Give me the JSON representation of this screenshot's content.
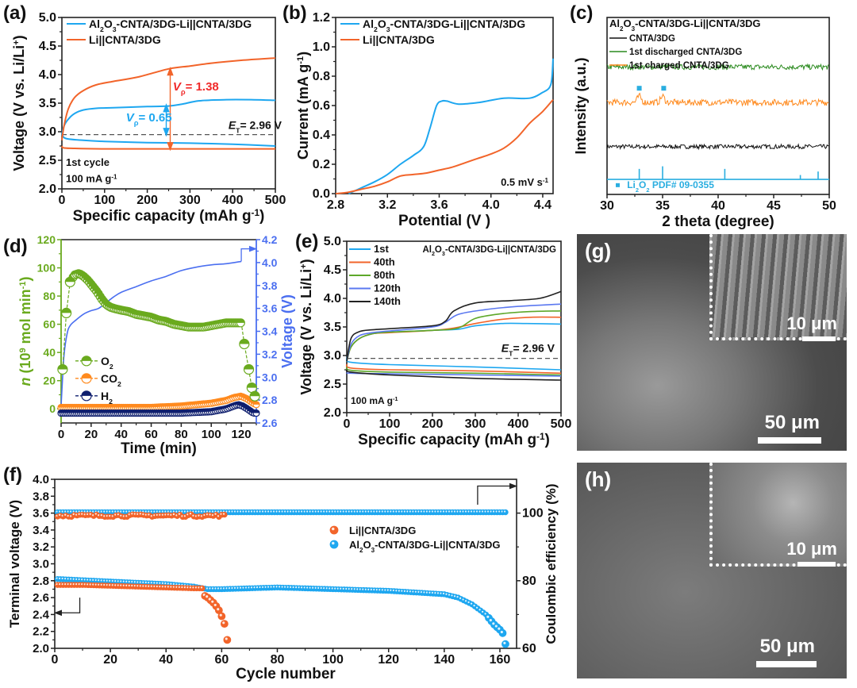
{
  "chart_data": [
    {
      "panel": "(a)",
      "type": "line",
      "xlabel": "Specific capacity (mAh g-1)",
      "ylabel": "Voltage (V vs. Li/Li+)",
      "xlim": [
        0,
        500
      ],
      "ylim": [
        2.0,
        5.0
      ],
      "xticks": [
        0,
        100,
        200,
        300,
        400,
        500
      ],
      "yticks": [
        2.0,
        2.5,
        3.0,
        3.5,
        4.0,
        4.5,
        5.0
      ],
      "legend": [
        "Al2O3-CNTA/3DG-Li||CNTA/3DG",
        "Li||CNTA/3DG"
      ],
      "legend_position": "top-left",
      "annotations": [
        "1st cycle",
        "100 mA g-1",
        "ET= 2.96 V",
        "Vp= 0.65",
        "Vp= 1.38"
      ],
      "reference_line": 2.95,
      "series": [
        {
          "name": "Al2O3-CNTA/3DG-Li||CNTA/3DG",
          "color": "#1ea7f0",
          "branch": "charge",
          "x": [
            0,
            5,
            15,
            30,
            50,
            80,
            120,
            200,
            250,
            280,
            320,
            380,
            450,
            500
          ],
          "y": [
            2.95,
            3.1,
            3.22,
            3.32,
            3.38,
            3.41,
            3.42,
            3.44,
            3.45,
            3.48,
            3.54,
            3.56,
            3.56,
            3.55
          ]
        },
        {
          "name": "Al2O3-CNTA/3DG-Li||CNTA/3DG",
          "color": "#1ea7f0",
          "branch": "discharge",
          "x": [
            0,
            10,
            50,
            100,
            200,
            300,
            400,
            500
          ],
          "y": [
            2.95,
            2.88,
            2.85,
            2.83,
            2.81,
            2.8,
            2.78,
            2.75
          ]
        },
        {
          "name": "Li||CNTA/3DG",
          "color": "#f2642a",
          "branch": "charge",
          "x": [
            0,
            5,
            15,
            30,
            50,
            80,
            120,
            180,
            250,
            300,
            350,
            420,
            500
          ],
          "y": [
            2.85,
            3.1,
            3.4,
            3.6,
            3.72,
            3.82,
            3.88,
            3.96,
            4.1,
            4.15,
            4.2,
            4.25,
            4.29
          ]
        },
        {
          "name": "Li||CNTA/3DG",
          "color": "#f2642a",
          "branch": "discharge",
          "x": [
            0,
            3,
            20,
            100,
            300,
            500
          ],
          "y": [
            2.75,
            2.72,
            2.71,
            2.7,
            2.7,
            2.7
          ]
        }
      ]
    },
    {
      "panel": "(b)",
      "type": "line",
      "xlabel": "Potential (V )",
      "ylabel": "Current (mA g-1)",
      "xlim": [
        2.8,
        4.48
      ],
      "ylim": [
        0.0,
        1.2
      ],
      "xticks": [
        2.8,
        3.2,
        3.6,
        4.0,
        4.4
      ],
      "yticks": [
        0.0,
        0.2,
        0.4,
        0.6,
        0.8,
        1.0,
        1.2
      ],
      "legend": [
        "Al2O3-CNTA/3DG-Li||CNTA/3DG",
        "Li||CNTA/3DG"
      ],
      "legend_position": "top-left",
      "annotations": [
        "0.5 mV s-1"
      ],
      "series": [
        {
          "name": "Al2O3-CNTA/3DG-Li||CNTA/3DG",
          "color": "#1ea7f0",
          "x": [
            2.9,
            3.0,
            3.1,
            3.2,
            3.3,
            3.4,
            3.48,
            3.53,
            3.58,
            3.62,
            3.66,
            3.75,
            3.9,
            4.1,
            4.3,
            4.4,
            4.45,
            4.47,
            4.48
          ],
          "y": [
            0.0,
            0.04,
            0.08,
            0.13,
            0.2,
            0.26,
            0.32,
            0.45,
            0.6,
            0.63,
            0.63,
            0.61,
            0.62,
            0.65,
            0.65,
            0.69,
            0.72,
            0.78,
            0.92
          ]
        },
        {
          "name": "Li||CNTA/3DG",
          "color": "#f2642a",
          "x": [
            2.8,
            2.9,
            3.0,
            3.1,
            3.2,
            3.3,
            3.4,
            3.5,
            3.6,
            3.7,
            3.8,
            3.9,
            4.0,
            4.1,
            4.2,
            4.3,
            4.4,
            4.48
          ],
          "y": [
            0.0,
            0.01,
            0.03,
            0.05,
            0.08,
            0.12,
            0.13,
            0.14,
            0.16,
            0.18,
            0.21,
            0.24,
            0.27,
            0.31,
            0.38,
            0.48,
            0.56,
            0.64
          ]
        }
      ]
    },
    {
      "panel": "(c)",
      "type": "line",
      "title": "Al2O3-CNTA/3DG-Li||CNTA/3DG",
      "xlabel": "2 theta (degree)",
      "ylabel": "Intensity (a.u.)",
      "xlim": [
        30,
        50
      ],
      "xticks": [
        30,
        35,
        40,
        45,
        50
      ],
      "legend": [
        "CNTA/3DG",
        "1st discharged CNTA/3DG",
        "1st charged CNTA/3DG"
      ],
      "legend_position": "top-left",
      "series": [
        {
          "name": "CNTA/3DG",
          "color": "#111111",
          "offset": 0.27,
          "noise": 0.012
        },
        {
          "name": "1st discharged CNTA/3DG",
          "color": "#2a8a1e",
          "offset": 0.72,
          "noise": 0.015
        },
        {
          "name": "1st charged CNTA/3DG",
          "color": "#ff8a1e",
          "offset": 0.52,
          "noise": 0.018,
          "peaks": [
            32.9,
            35.0
          ]
        }
      ],
      "reference": {
        "name": "Li2O2 PDF# 09-0355",
        "color": "#2aaee0",
        "positions": [
          32.9,
          35.0,
          40.6,
          47.4,
          49.0
        ],
        "heights": [
          0.6,
          0.75,
          0.6,
          0.25,
          0.45
        ]
      },
      "peak_markers": [
        32.9,
        35.1
      ]
    },
    {
      "panel": "(d)",
      "type": "scatter",
      "xlabel": "Time (min)",
      "ylabel": "n (10^9 mol min-1)",
      "ylabel_right": "Voltage (V)",
      "xlim": [
        0,
        130
      ],
      "ylim": [
        -10,
        120
      ],
      "ylim_right": [
        2.6,
        4.2
      ],
      "xticks": [
        0,
        20,
        40,
        60,
        80,
        100,
        120
      ],
      "yticks": [
        0,
        20,
        40,
        60,
        80,
        100,
        120
      ],
      "yticks_right": [
        2.6,
        2.8,
        3.0,
        3.2,
        3.4,
        3.6,
        3.8,
        4.0,
        4.2
      ],
      "legend": [
        "O2",
        "CO2",
        "H2"
      ],
      "legend_position": "bottom-left",
      "series": [
        {
          "name": "O2",
          "color": "#6aaa1e",
          "x": [
            1,
            3.5,
            6,
            9,
            12,
            15,
            18,
            21,
            24,
            27,
            30,
            33,
            36,
            40,
            45,
            50,
            55,
            60,
            65,
            70,
            75,
            80,
            85,
            90,
            95,
            100,
            105,
            110,
            115,
            120,
            122,
            125,
            127,
            129
          ],
          "y": [
            28,
            68,
            90,
            95,
            96,
            94,
            91,
            87,
            83,
            78,
            74,
            72,
            71,
            70,
            69,
            67,
            66,
            65,
            63,
            62,
            60,
            59,
            58,
            58,
            58,
            59,
            60,
            61,
            61,
            61,
            46,
            28,
            15,
            9
          ]
        },
        {
          "name": "CO2",
          "color": "#ff8a1e",
          "x": [
            0,
            20,
            40,
            60,
            80,
            100,
            110,
            115,
            120,
            124,
            128,
            130
          ],
          "y": [
            1,
            1,
            1,
            1,
            2,
            4,
            6,
            8,
            9,
            7,
            4,
            3
          ]
        },
        {
          "name": "H2",
          "color": "#0f1f6e",
          "x": [
            0,
            40,
            80,
            100,
            110,
            115,
            118,
            121,
            124,
            128
          ],
          "y": [
            -3,
            -3,
            -3,
            -2,
            0,
            2,
            3,
            2,
            0,
            -3
          ]
        },
        {
          "name": "Voltage",
          "axis": "right",
          "color": "#4b6ff0",
          "x": [
            0,
            1,
            2,
            4,
            6,
            10,
            15,
            20,
            25,
            30,
            35,
            40,
            50,
            60,
            70,
            80,
            90,
            100,
            110,
            120
          ],
          "y": [
            2.75,
            3.0,
            3.2,
            3.38,
            3.45,
            3.5,
            3.55,
            3.58,
            3.6,
            3.65,
            3.7,
            3.74,
            3.79,
            3.84,
            3.88,
            3.93,
            3.96,
            3.98,
            3.99,
            4.01
          ]
        }
      ]
    },
    {
      "panel": "(e)",
      "type": "line",
      "xlabel": "Specific capacity (mAh g-1)",
      "ylabel": "Voltage (V vs. Li/Li+)",
      "xlim": [
        0,
        500
      ],
      "ylim": [
        2.0,
        5.0
      ],
      "xticks": [
        0,
        100,
        200,
        300,
        400,
        500
      ],
      "yticks": [
        2.0,
        2.5,
        3.0,
        3.5,
        4.0,
        4.5,
        5.0
      ],
      "title": "Al2O3-CNTA/3DG-Li||CNTA/3DG",
      "legend": [
        "1st",
        "40th",
        "80th",
        "120th",
        "140th"
      ],
      "legend_position": "top-left",
      "annotations": [
        "100 mA g-1",
        "ET= 2.96 V"
      ],
      "reference_line": 2.95,
      "series": [
        {
          "name": "1st",
          "color": "#1ea7f0",
          "charge": {
            "x": [
              0,
              10,
              30,
              60,
              100,
              200,
              260,
              300,
              360,
              420,
              500
            ],
            "y": [
              2.95,
              3.15,
              3.3,
              3.38,
              3.41,
              3.44,
              3.46,
              3.52,
              3.56,
              3.56,
              3.55
            ]
          },
          "discharge": {
            "x": [
              0,
              10,
              100,
              300,
              500
            ],
            "y": [
              2.95,
              2.88,
              2.84,
              2.8,
              2.75
            ]
          }
        },
        {
          "name": "40th",
          "color": "#f2642a",
          "charge": {
            "x": [
              0,
              10,
              30,
              60,
              100,
              200,
              250,
              300,
              360,
              430,
              500
            ],
            "y": [
              2.9,
              3.15,
              3.3,
              3.38,
              3.4,
              3.44,
              3.48,
              3.56,
              3.63,
              3.67,
              3.67
            ]
          },
          "discharge": {
            "x": [
              0,
              10,
              100,
              300,
              500
            ],
            "y": [
              2.85,
              2.78,
              2.75,
              2.73,
              2.69
            ]
          }
        },
        {
          "name": "80th",
          "color": "#5ea82a",
          "charge": {
            "x": [
              0,
              10,
              30,
              60,
              100,
              200,
              260,
              300,
              360,
              430,
              500
            ],
            "y": [
              2.9,
              3.15,
              3.3,
              3.38,
              3.41,
              3.44,
              3.48,
              3.65,
              3.73,
              3.77,
              3.78
            ]
          },
          "discharge": {
            "x": [
              0,
              10,
              100,
              300,
              500
            ],
            "y": [
              2.8,
              2.74,
              2.71,
              2.69,
              2.66
            ]
          }
        },
        {
          "name": "120th",
          "color": "#5b78f0",
          "charge": {
            "x": [
              0,
              10,
              30,
              60,
              100,
              200,
              230,
              260,
              320,
              400,
              500
            ],
            "y": [
              2.9,
              3.2,
              3.35,
              3.4,
              3.43,
              3.5,
              3.58,
              3.72,
              3.8,
              3.86,
              3.9
            ]
          },
          "discharge": {
            "x": [
              0,
              10,
              100,
              300,
              500
            ],
            "y": [
              2.7,
              2.69,
              2.68,
              2.66,
              2.64
            ]
          }
        },
        {
          "name": "140th",
          "color": "#222222",
          "charge": {
            "x": [
              0,
              10,
              30,
              60,
              100,
              200,
              230,
              250,
              300,
              380,
              450,
              500
            ],
            "y": [
              2.9,
              3.3,
              3.42,
              3.45,
              3.47,
              3.52,
              3.6,
              3.78,
              3.92,
              3.96,
              4.0,
              4.12
            ]
          },
          "discharge": {
            "x": [
              0,
              10,
              100,
              300,
              500
            ],
            "y": [
              2.75,
              2.71,
              2.66,
              2.6,
              2.57
            ]
          }
        }
      ]
    },
    {
      "panel": "(f)",
      "type": "scatter",
      "xlabel": "Cycle number",
      "ylabel": "Terminal voltage (V)",
      "ylabel_right": "Coulombic efficiency (%)",
      "xlim": [
        0,
        166
      ],
      "ylim": [
        2.0,
        4.0
      ],
      "ylim_right": [
        60,
        110
      ],
      "xticks": [
        0,
        20,
        40,
        60,
        80,
        100,
        120,
        140,
        160
      ],
      "yticks": [
        2.0,
        2.2,
        2.4,
        2.6,
        2.8,
        3.0,
        3.2,
        3.4,
        3.6,
        3.8,
        4.0
      ],
      "yticks_right": [
        60,
        80,
        100
      ],
      "legend": [
        "Li||CNTA/3DG",
        "Al2O3-CNTA/3DG-Li||CNTA/3DG"
      ],
      "legend_position": "center-right",
      "series": [
        {
          "name": "Li||CNTA/3DG",
          "color": "#f2642a",
          "kind": "charge_voltage",
          "cycles": [
            1,
            62
          ],
          "value": 3.57
        },
        {
          "name": "Li||CNTA/3DG",
          "color": "#f2642a",
          "kind": "discharge_voltage",
          "x": [
            1,
            10,
            20,
            30,
            40,
            50,
            53,
            54,
            55,
            56,
            57,
            58,
            59,
            60,
            61,
            62
          ],
          "y": [
            2.75,
            2.75,
            2.74,
            2.73,
            2.72,
            2.71,
            2.71,
            2.62,
            2.6,
            2.57,
            2.54,
            2.5,
            2.45,
            2.38,
            2.29,
            2.1
          ]
        },
        {
          "name": "Al2O3-CNTA/3DG-Li||CNTA/3DG",
          "color": "#1ea7f0",
          "kind": "charge_voltage",
          "cycles": [
            1,
            162
          ],
          "value": 3.6
        },
        {
          "name": "Al2O3-CNTA/3DG-Li||CNTA/3DG",
          "color": "#1ea7f0",
          "kind": "discharge_voltage",
          "x": [
            1,
            20,
            40,
            50,
            55,
            60,
            80,
            100,
            120,
            140,
            145,
            150,
            155,
            158,
            160,
            161,
            162
          ],
          "y": [
            2.82,
            2.79,
            2.76,
            2.73,
            2.7,
            2.7,
            2.72,
            2.7,
            2.68,
            2.64,
            2.6,
            2.52,
            2.4,
            2.28,
            2.22,
            2.18,
            2.05
          ]
        }
      ]
    }
  ],
  "panel_labels": {
    "a": "(a)",
    "b": "(b)",
    "c": "(c)",
    "d": "(d)",
    "e": "(e)",
    "f": "(f)",
    "g": "(g)",
    "h": "(h)"
  },
  "sem_images": {
    "g": {
      "label": "(g)",
      "scale_main": "50 μm",
      "scale_inset": "10 μm"
    },
    "h": {
      "label": "(h)",
      "scale_main": "50 μm",
      "scale_inset": "10 μm"
    }
  }
}
